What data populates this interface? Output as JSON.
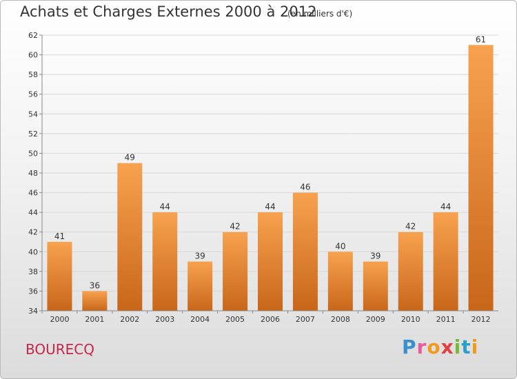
{
  "header": {
    "title": "Achats et Charges Externes 2000 à 2012",
    "subtitle": "(en milliers d'€)"
  },
  "footer": {
    "commune": "BOURECQ",
    "brand": "Proxiti"
  },
  "colors": {
    "bar_light": "#f7a24f",
    "bar_dark": "#c8661a",
    "commune_text": "#c8254a",
    "brand_letters": [
      "#3a8fd1",
      "#e85a9c",
      "#f29a1d",
      "#e04040",
      "#78b83a",
      "#2aa0c8",
      "#f29a1d"
    ]
  },
  "chart_data": {
    "type": "bar",
    "title": "Achats et Charges Externes 2000 à 2012",
    "subtitle": "(en milliers d'€)",
    "categories": [
      "2000",
      "2001",
      "2002",
      "2003",
      "2004",
      "2005",
      "2006",
      "2007",
      "2008",
      "2009",
      "2010",
      "2011",
      "2012"
    ],
    "values": [
      41,
      36,
      49,
      44,
      39,
      42,
      44,
      46,
      40,
      39,
      42,
      44,
      61
    ],
    "ylim": [
      34,
      62
    ],
    "yticks": [
      34,
      36,
      38,
      40,
      42,
      44,
      46,
      48,
      50,
      52,
      54,
      56,
      58,
      60,
      62
    ],
    "grid": true,
    "data_labels": true
  }
}
